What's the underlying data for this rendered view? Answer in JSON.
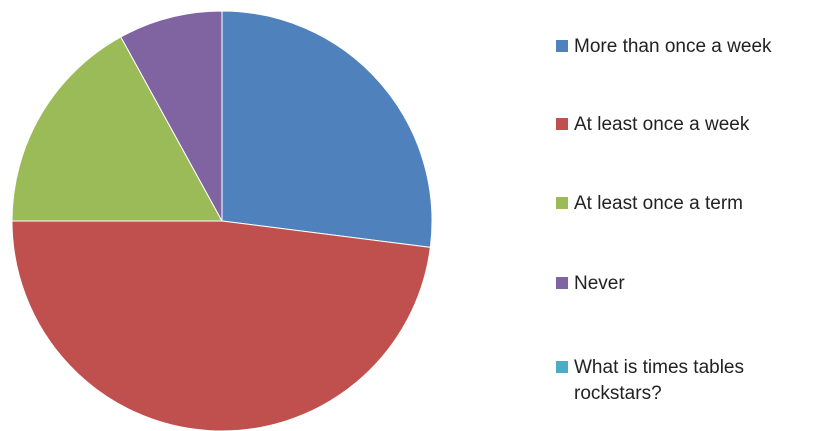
{
  "chart_data": {
    "type": "pie",
    "categories": [
      "More than once a week",
      "At least once a week",
      "At least once a term",
      "Never",
      "What is times tables rockstars?"
    ],
    "values": [
      27,
      48,
      17,
      8,
      0
    ],
    "colors": [
      "#4F81BD",
      "#C0504D",
      "#9BBB59",
      "#8064A2",
      "#4BACC6"
    ],
    "start_angle": "12 o'clock",
    "direction": "clockwise",
    "legend_position": "right",
    "title": ""
  }
}
